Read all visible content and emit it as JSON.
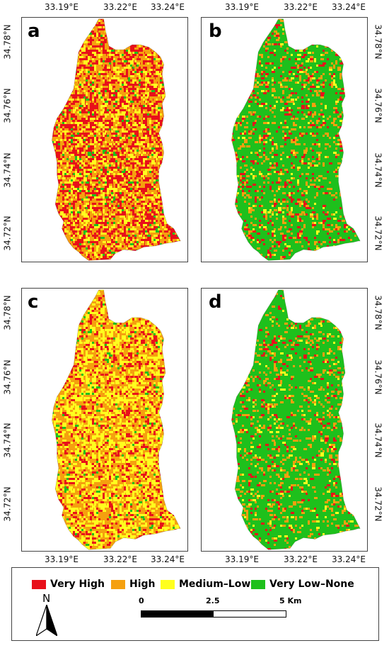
{
  "panels": [
    {
      "letter": "a",
      "mix": [
        0.42,
        0.33,
        0.2,
        0.05
      ]
    },
    {
      "letter": "b",
      "mix": [
        0.08,
        0.12,
        0.04,
        0.76
      ]
    },
    {
      "letter": "c",
      "mix": [
        0.16,
        0.47,
        0.34,
        0.03
      ]
    },
    {
      "letter": "d",
      "mix": [
        0.05,
        0.12,
        0.03,
        0.8
      ]
    }
  ],
  "coords": {
    "lon": [
      "33.19°E",
      "33.22°E",
      "33.24°E"
    ],
    "lat": [
      "34.78°N",
      "34.76°N",
      "34.74°N",
      "34.72°N"
    ]
  },
  "legend": {
    "classes": [
      {
        "label": "Very High",
        "color": "#e8101a"
      },
      {
        "label": "High",
        "color": "#f5a00f"
      },
      {
        "label": "Medium–Low",
        "color": "#ffff1e"
      },
      {
        "label": "Very Low–None",
        "color": "#1ec01c"
      }
    ]
  },
  "north_label": "N",
  "scale": {
    "start": "0",
    "mid": "2.5",
    "end": "5 Km"
  }
}
